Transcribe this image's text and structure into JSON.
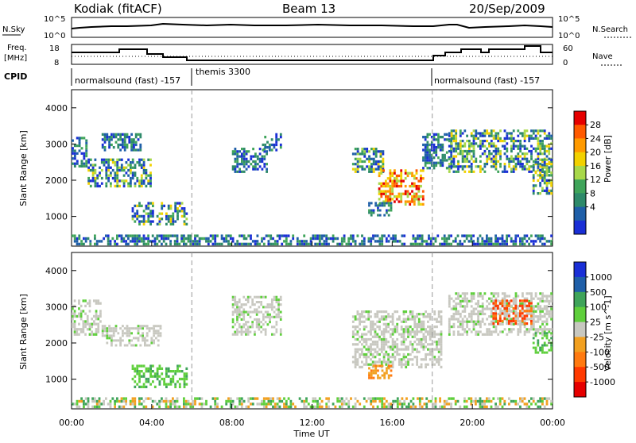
{
  "header": {
    "station": "Kodiak (fitACF)",
    "beam": "Beam 13",
    "date": "20/Sep/2009"
  },
  "noise_panel": {
    "left_label": "N.Sky",
    "right_label": "N.Search",
    "left_ticks": [
      "10^5",
      "10^0"
    ],
    "right_ticks": [
      "10^5",
      "10^0"
    ]
  },
  "freq_panel": {
    "left_label_line1": "Freq.",
    "left_label_line2": "[MHz]",
    "right_label": "Nave",
    "left_ticks": [
      "18",
      "8"
    ],
    "right_ticks": [
      "60",
      "0"
    ]
  },
  "cpid_panel": {
    "label": "CPID",
    "modes": [
      {
        "text": "normalsound (fast)  -157",
        "start_hour": 0
      },
      {
        "text": "themis 3300",
        "start_hour": 6
      },
      {
        "text": "normalsound (fast)  -157",
        "start_hour": 18
      }
    ]
  },
  "time_axis": {
    "xlabel": "Time UT",
    "ticks": [
      "00:00",
      "04:00",
      "08:00",
      "12:00",
      "16:00",
      "20:00",
      "00:00"
    ]
  },
  "chart_data": [
    {
      "type": "heatmap",
      "name": "power",
      "ylabel": "Slant Range [km]",
      "xrange_hours": [
        0,
        24
      ],
      "ylim": [
        180,
        4500
      ],
      "yticks": [
        1000,
        2000,
        3000,
        4000
      ],
      "colorbar_label": "Power [dB]",
      "colorbar_ticks": [
        "28",
        "24",
        "20",
        "16",
        "12",
        "8",
        "4"
      ],
      "colorbar_colors": [
        "#e60000",
        "#ff5a00",
        "#ff9a00",
        "#f2d100",
        "#a8d84a",
        "#3fa45a",
        "#2e8a6a",
        "#1f5fa8",
        "#1a2fd6"
      ],
      "mode_boundaries_hours": [
        6,
        18
      ],
      "regions": [
        {
          "t0": 0.0,
          "t1": 0.8,
          "r0": 2350,
          "r1": 3200,
          "level": "low"
        },
        {
          "t0": 0.8,
          "t1": 4.0,
          "r0": 1800,
          "r1": 2600,
          "level": "mid"
        },
        {
          "t0": 3.0,
          "t1": 5.8,
          "r0": 750,
          "r1": 1400,
          "level": "mid"
        },
        {
          "t0": 1.5,
          "t1": 3.5,
          "r0": 2800,
          "r1": 3300,
          "level": "low"
        },
        {
          "t0": 8.0,
          "t1": 9.8,
          "r0": 2200,
          "r1": 2900,
          "level": "low"
        },
        {
          "t0": 9.5,
          "t1": 10.5,
          "r0": 2800,
          "r1": 3300,
          "level": "low"
        },
        {
          "t0": 14.0,
          "t1": 15.6,
          "r0": 2200,
          "r1": 2900,
          "level": "mid"
        },
        {
          "t0": 15.3,
          "t1": 17.6,
          "r0": 1300,
          "r1": 2300,
          "level": "high"
        },
        {
          "t0": 14.8,
          "t1": 16.0,
          "r0": 1000,
          "r1": 1400,
          "level": "low"
        },
        {
          "t0": 17.5,
          "t1": 19.0,
          "r0": 2300,
          "r1": 3300,
          "level": "low"
        },
        {
          "t0": 18.8,
          "t1": 24.0,
          "r0": 2200,
          "r1": 3400,
          "level": "mid"
        },
        {
          "t0": 23.0,
          "t1": 24.0,
          "r0": 1600,
          "r1": 2600,
          "level": "mid"
        },
        {
          "t0": 0.0,
          "t1": 24.0,
          "r0": 200,
          "r1": 500,
          "level": "low"
        }
      ]
    },
    {
      "type": "heatmap",
      "name": "velocity",
      "ylabel": "Slant Range [km]",
      "xrange_hours": [
        0,
        24
      ],
      "ylim": [
        180,
        4500
      ],
      "yticks": [
        1000,
        2000,
        3000,
        4000
      ],
      "colorbar_label": "Velocity [m s^-1]",
      "colorbar_ticks": [
        "1000",
        "500",
        "100",
        "25",
        "-25",
        "-100",
        "-500",
        "-1000"
      ],
      "colorbar_colors": [
        "#1a2fd6",
        "#1f5fa8",
        "#3fa45a",
        "#5fcf3c",
        "#c8c8c0",
        "#f2a020",
        "#ff7a10",
        "#ff3a00",
        "#e60000"
      ],
      "mode_boundaries_hours": [
        6,
        18
      ],
      "regions": [
        {
          "t0": 0.0,
          "t1": 1.5,
          "r0": 2200,
          "r1": 3200,
          "level": "neutral"
        },
        {
          "t0": 1.5,
          "t1": 4.5,
          "r0": 1900,
          "r1": 2500,
          "level": "neutral"
        },
        {
          "t0": 3.0,
          "t1": 5.8,
          "r0": 750,
          "r1": 1400,
          "level": "toward"
        },
        {
          "t0": 8.0,
          "t1": 10.5,
          "r0": 2200,
          "r1": 3300,
          "level": "neutral"
        },
        {
          "t0": 14.0,
          "t1": 18.5,
          "r0": 1300,
          "r1": 2900,
          "level": "neutral"
        },
        {
          "t0": 14.8,
          "t1": 16.0,
          "r0": 1000,
          "r1": 1400,
          "level": "away"
        },
        {
          "t0": 18.8,
          "t1": 24.0,
          "r0": 2200,
          "r1": 3400,
          "level": "neutral"
        },
        {
          "t0": 21.0,
          "t1": 23.0,
          "r0": 2500,
          "r1": 3200,
          "level": "strong_away"
        },
        {
          "t0": 23.0,
          "t1": 24.0,
          "r0": 1700,
          "r1": 2300,
          "level": "toward"
        },
        {
          "t0": 0.0,
          "t1": 24.0,
          "r0": 200,
          "r1": 500,
          "level": "mixed"
        }
      ]
    }
  ]
}
